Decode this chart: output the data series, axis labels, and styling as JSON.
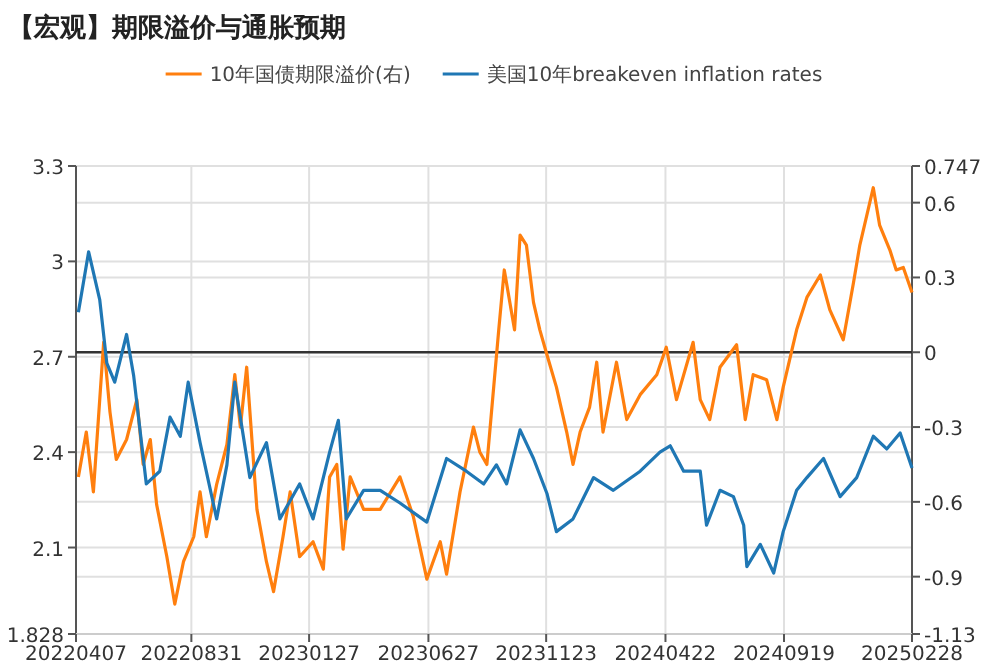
{
  "chart_data": {
    "type": "line",
    "title": "【宏观】期限溢价与通胀预期",
    "legend": "top",
    "line_style": "solid",
    "grid": true,
    "xlim": [
      "2022-04-07",
      "2025-02-28"
    ],
    "xticks": [
      {
        "value": "2022-04-07",
        "label": "20220407"
      },
      {
        "value": "2022-08-31",
        "label": "20220831"
      },
      {
        "value": "2023-01-27",
        "label": "20230127"
      },
      {
        "value": "2023-06-27",
        "label": "20230627"
      },
      {
        "value": "2023-11-23",
        "label": "20231123"
      },
      {
        "value": "2024-04-22",
        "label": "20240422"
      },
      {
        "value": "2024-09-19",
        "label": "20240919"
      },
      {
        "value": "2025-02-28",
        "label": "20250228"
      }
    ],
    "ylim": [
      1.828,
      3.3
    ],
    "yticks": [
      1.828,
      2.1,
      2.4,
      2.7,
      3,
      3.3
    ],
    "y2lim": [
      -1.13,
      0.747
    ],
    "y2ticks": [
      -1.13,
      -0.9,
      -0.6,
      -0.3,
      0,
      0.3,
      0.6,
      0.747
    ],
    "ref_lines": [
      {
        "axis": "y2",
        "value": 0,
        "color": "#333333",
        "line_style": "solid"
      }
    ],
    "series": [
      {
        "name": "10年国债期限溢价(右)",
        "color": "#ff7f0e",
        "axis": "y2",
        "x": [
          "2022-04-10",
          "2022-04-20",
          "2022-04-29",
          "2022-05-12",
          "2022-05-20",
          "2022-05-28",
          "2022-06-10",
          "2022-06-23",
          "2022-07-01",
          "2022-07-10",
          "2022-07-18",
          "2022-07-31",
          "2022-08-10",
          "2022-08-21",
          "2022-09-03",
          "2022-09-11",
          "2022-09-19",
          "2022-10-02",
          "2022-10-15",
          "2022-10-25",
          "2022-11-01",
          "2022-11-09",
          "2022-11-22",
          "2022-12-04",
          "2022-12-13",
          "2022-12-25",
          "2023-01-03",
          "2023-01-15",
          "2023-02-01",
          "2023-02-14",
          "2023-02-22",
          "2023-03-03",
          "2023-03-11",
          "2023-03-20",
          "2023-04-06",
          "2023-04-27",
          "2023-05-22",
          "2023-06-08",
          "2023-06-25",
          "2023-07-12",
          "2023-07-20",
          "2023-08-06",
          "2023-08-23",
          "2023-08-31",
          "2023-09-09",
          "2023-09-24",
          "2023-10-01",
          "2023-10-14",
          "2023-10-21",
          "2023-10-29",
          "2023-11-07",
          "2023-11-15",
          "2023-11-24",
          "2023-12-06",
          "2023-12-19",
          "2023-12-27",
          "2024-01-05",
          "2024-01-17",
          "2024-01-26",
          "2024-02-03",
          "2024-02-20",
          "2024-03-04",
          "2024-03-21",
          "2024-04-11",
          "2024-04-23",
          "2024-05-06",
          "2024-05-27",
          "2024-06-05",
          "2024-06-17",
          "2024-06-30",
          "2024-07-21",
          "2024-08-01",
          "2024-08-11",
          "2024-08-28",
          "2024-09-10",
          "2024-09-18",
          "2024-10-05",
          "2024-10-18",
          "2024-11-04",
          "2024-11-16",
          "2024-12-03",
          "2024-12-16",
          "2024-12-24",
          "2025-01-10",
          "2025-01-18",
          "2025-01-31",
          "2025-02-08",
          "2025-02-17",
          "2025-02-28"
        ],
        "values": [
          -0.5,
          -0.32,
          -0.56,
          0.04,
          -0.24,
          -0.43,
          -0.35,
          -0.19,
          -0.45,
          -0.35,
          -0.61,
          -0.82,
          -1.01,
          -0.84,
          -0.74,
          -0.56,
          -0.74,
          -0.53,
          -0.37,
          -0.09,
          -0.3,
          -0.06,
          -0.63,
          -0.84,
          -0.96,
          -0.74,
          -0.56,
          -0.82,
          -0.76,
          -0.87,
          -0.5,
          -0.45,
          -0.79,
          -0.5,
          -0.63,
          -0.63,
          -0.5,
          -0.66,
          -0.91,
          -0.76,
          -0.89,
          -0.56,
          -0.3,
          -0.4,
          -0.45,
          0.09,
          0.33,
          0.09,
          0.47,
          0.43,
          0.2,
          0.09,
          -0.01,
          -0.14,
          -0.32,
          -0.45,
          -0.32,
          -0.22,
          -0.04,
          -0.32,
          -0.04,
          -0.27,
          -0.17,
          -0.09,
          0.02,
          -0.19,
          0.04,
          -0.19,
          -0.27,
          -0.06,
          0.03,
          -0.27,
          -0.09,
          -0.11,
          -0.27,
          -0.14,
          0.09,
          0.22,
          0.31,
          0.17,
          0.05,
          0.28,
          0.43,
          0.66,
          0.51,
          0.41,
          0.33,
          0.34,
          0.24
        ]
      },
      {
        "name": "美国10年breakeven inflation rates",
        "color": "#1f77b4",
        "axis": "y",
        "x": [
          "2022-04-10",
          "2022-04-23",
          "2022-05-07",
          "2022-05-16",
          "2022-05-26",
          "2022-06-10",
          "2022-06-19",
          "2022-07-05",
          "2022-07-22",
          "2022-08-04",
          "2022-08-17",
          "2022-08-27",
          "2022-09-11",
          "2022-10-02",
          "2022-10-15",
          "2022-10-25",
          "2022-11-13",
          "2022-12-04",
          "2022-12-21",
          "2023-01-15",
          "2023-02-01",
          "2023-02-22",
          "2023-03-05",
          "2023-03-15",
          "2023-04-06",
          "2023-04-27",
          "2023-05-22",
          "2023-06-25",
          "2023-07-20",
          "2023-08-14",
          "2023-09-05",
          "2023-09-21",
          "2023-10-04",
          "2023-10-21",
          "2023-11-07",
          "2023-11-24",
          "2023-12-06",
          "2023-12-27",
          "2024-01-22",
          "2024-02-16",
          "2024-03-21",
          "2024-04-15",
          "2024-04-28",
          "2024-05-15",
          "2024-06-05",
          "2024-06-13",
          "2024-06-30",
          "2024-07-17",
          "2024-07-30",
          "2024-08-03",
          "2024-08-20",
          "2024-09-06",
          "2024-09-18",
          "2024-10-05",
          "2024-10-18",
          "2024-11-08",
          "2024-11-29",
          "2024-12-20",
          "2025-01-10",
          "2025-01-27",
          "2025-02-13",
          "2025-02-28"
        ],
        "values": [
          2.84,
          3.03,
          2.88,
          2.68,
          2.62,
          2.77,
          2.64,
          2.3,
          2.34,
          2.51,
          2.45,
          2.62,
          2.43,
          2.19,
          2.36,
          2.62,
          2.32,
          2.43,
          2.19,
          2.3,
          2.19,
          2.4,
          2.5,
          2.19,
          2.28,
          2.28,
          2.24,
          2.18,
          2.38,
          2.34,
          2.3,
          2.36,
          2.3,
          2.47,
          2.38,
          2.27,
          2.15,
          2.19,
          2.32,
          2.28,
          2.34,
          2.4,
          2.42,
          2.34,
          2.34,
          2.17,
          2.28,
          2.26,
          2.17,
          2.04,
          2.11,
          2.02,
          2.15,
          2.28,
          2.32,
          2.38,
          2.26,
          2.32,
          2.45,
          2.41,
          2.46,
          2.35
        ]
      }
    ]
  }
}
